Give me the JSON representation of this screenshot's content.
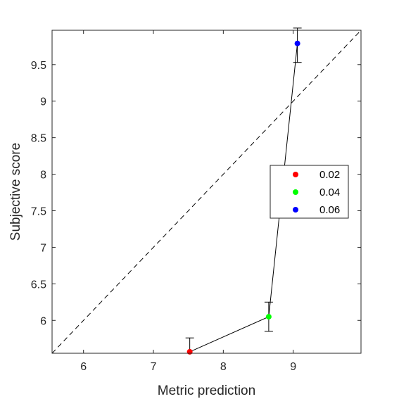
{
  "chart_data": {
    "type": "scatter",
    "title": "",
    "xlabel": "Metric prediction",
    "ylabel": "Subjective score",
    "xlim": [
      5.55,
      9.97
    ],
    "ylim": [
      5.55,
      9.97
    ],
    "xticks": [
      {
        "v": 6,
        "label": "6"
      },
      {
        "v": 7,
        "label": "7"
      },
      {
        "v": 8,
        "label": "8"
      },
      {
        "v": 9,
        "label": "9"
      }
    ],
    "yticks": [
      {
        "v": 6,
        "label": "6"
      },
      {
        "v": 6.5,
        "label": "6.5"
      },
      {
        "v": 7,
        "label": "7"
      },
      {
        "v": 7.5,
        "label": "7.5"
      },
      {
        "v": 8,
        "label": "8"
      },
      {
        "v": 8.5,
        "label": "8.5"
      },
      {
        "v": 9,
        "label": "9"
      },
      {
        "v": 9.5,
        "label": "9.5"
      }
    ],
    "grid": false,
    "legend_position": "right",
    "reference_line": {
      "style": "dashed",
      "from": [
        5.55,
        5.55
      ],
      "to": [
        9.97,
        9.97
      ]
    },
    "connect_points": true,
    "points": [
      {
        "name": "0.02",
        "x": 7.52,
        "y": 5.57,
        "err_low": 0.0,
        "err_high": 0.19,
        "color": "#ff0000"
      },
      {
        "name": "0.04",
        "x": 8.65,
        "y": 6.05,
        "err_low": 0.2,
        "err_high": 0.2,
        "color": "#00ff00"
      },
      {
        "name": "0.06",
        "x": 9.06,
        "y": 9.79,
        "err_low": 0.26,
        "err_high": 0.21,
        "color": "#0000ff"
      }
    ]
  }
}
